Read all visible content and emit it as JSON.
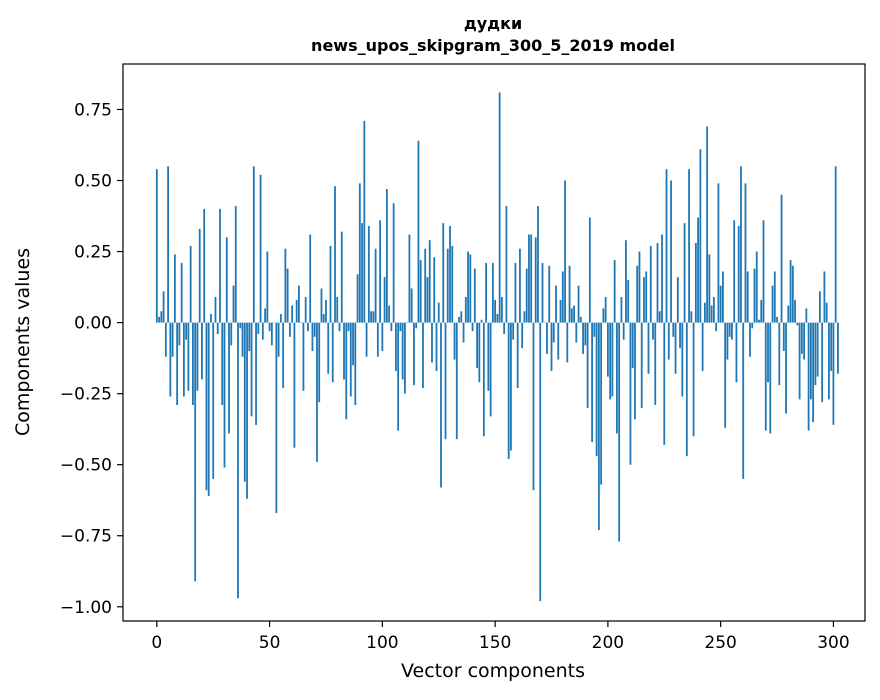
{
  "chart_data": {
    "type": "bar",
    "title": "дудки",
    "subtitle": "news_upos_skipgram_300_5_2019 model",
    "xlabel": "Vector components",
    "ylabel": "Components values",
    "xlim": [
      -15,
      314
    ],
    "ylim": [
      -1.05,
      0.91
    ],
    "xticks": [
      0,
      50,
      100,
      150,
      200,
      250,
      300
    ],
    "yticks": [
      0.75,
      0.5,
      0.25,
      0.0,
      -0.25,
      -0.5,
      -0.75,
      -1.0
    ],
    "xtick_labels": [
      "0",
      "50",
      "100",
      "150",
      "200",
      "250",
      "300"
    ],
    "ytick_labels": [
      "0.75",
      "0.50",
      "0.25",
      "0.00",
      "−0.25",
      "−0.50",
      "−0.75",
      "−1.00"
    ],
    "bar_color": "#1f77b4",
    "grid": false,
    "values": [
      0.54,
      0.02,
      0.04,
      0.11,
      -0.12,
      0.55,
      -0.26,
      -0.12,
      0.24,
      -0.29,
      -0.08,
      0.21,
      -0.26,
      -0.06,
      -0.24,
      0.27,
      -0.29,
      -0.91,
      -0.24,
      0.33,
      -0.2,
      0.4,
      -0.59,
      -0.61,
      0.03,
      -0.55,
      0.09,
      -0.04,
      0.4,
      -0.29,
      -0.51,
      0.3,
      -0.39,
      -0.08,
      0.13,
      0.41,
      -0.97,
      -0.02,
      -0.12,
      -0.56,
      -0.62,
      -0.1,
      -0.33,
      0.55,
      -0.36,
      -0.04,
      0.52,
      -0.06,
      0.05,
      0.25,
      -0.03,
      -0.08,
      0.0,
      -0.67,
      -0.12,
      0.03,
      -0.23,
      0.26,
      0.19,
      -0.05,
      0.06,
      -0.44,
      0.08,
      0.13,
      0.0,
      -0.24,
      0.09,
      -0.03,
      0.31,
      -0.1,
      -0.05,
      -0.49,
      -0.28,
      0.12,
      0.03,
      0.08,
      -0.18,
      0.27,
      -0.21,
      0.48,
      0.09,
      -0.03,
      0.32,
      -0.2,
      -0.34,
      -0.03,
      -0.26,
      -0.15,
      -0.29,
      0.17,
      0.49,
      0.35,
      0.71,
      -0.12,
      0.34,
      0.04,
      0.04,
      0.26,
      -0.12,
      0.36,
      -0.1,
      0.16,
      0.47,
      0.06,
      -0.03,
      0.42,
      -0.17,
      -0.38,
      -0.03,
      -0.2,
      -0.25,
      0.0,
      0.31,
      0.12,
      -0.22,
      -0.02,
      0.64,
      0.22,
      -0.23,
      0.26,
      0.16,
      0.29,
      -0.14,
      0.23,
      -0.17,
      0.07,
      -0.58,
      0.35,
      -0.41,
      0.26,
      0.34,
      0.27,
      -0.13,
      -0.41,
      0.02,
      0.04,
      -0.07,
      0.09,
      0.25,
      0.24,
      -0.03,
      0.19,
      -0.16,
      -0.21,
      0.01,
      -0.4,
      0.21,
      -0.24,
      -0.33,
      0.21,
      0.08,
      0.03,
      0.81,
      0.09,
      -0.04,
      0.41,
      -0.48,
      -0.45,
      -0.06,
      0.21,
      -0.23,
      0.26,
      -0.09,
      0.04,
      0.19,
      0.31,
      0.31,
      -0.59,
      0.3,
      0.41,
      -0.98,
      0.21,
      0.0,
      -0.11,
      0.2,
      -0.17,
      -0.07,
      0.13,
      -0.13,
      0.08,
      0.18,
      0.5,
      -0.14,
      0.2,
      0.05,
      0.06,
      -0.07,
      0.13,
      0.02,
      -0.11,
      -0.08,
      -0.3,
      0.37,
      -0.42,
      -0.05,
      -0.47,
      -0.73,
      -0.57,
      0.05,
      0.09,
      -0.19,
      -0.27,
      -0.26,
      0.22,
      -0.39,
      -0.77,
      0.09,
      -0.06,
      0.29,
      0.15,
      -0.5,
      -0.16,
      -0.34,
      0.2,
      0.25,
      -0.3,
      0.16,
      0.18,
      -0.18,
      0.27,
      -0.06,
      -0.29,
      0.28,
      0.04,
      0.31,
      -0.43,
      0.54,
      -0.13,
      0.5,
      -0.05,
      -0.18,
      0.16,
      -0.09,
      -0.26,
      0.35,
      -0.47,
      0.54,
      0.04,
      -0.4,
      0.28,
      0.37,
      0.61,
      -0.17,
      0.07,
      0.69,
      0.24,
      0.06,
      0.09,
      -0.03,
      0.49,
      0.13,
      0.18,
      -0.37,
      -0.13,
      -0.05,
      -0.06,
      0.36,
      -0.21,
      0.34,
      0.55,
      -0.55,
      0.49,
      0.18,
      -0.12,
      -0.02,
      0.19,
      0.25,
      0.01,
      0.08,
      0.36,
      -0.38,
      -0.21,
      -0.39,
      0.13,
      0.18,
      0.02,
      -0.22,
      0.45,
      -0.1,
      -0.32,
      0.06,
      0.22,
      0.2,
      0.08,
      -0.01,
      -0.27,
      -0.11,
      -0.13,
      0.05,
      -0.38,
      -0.27,
      -0.35,
      -0.22,
      -0.19,
      0.11,
      -0.28,
      0.18,
      0.07,
      -0.27,
      -0.17,
      -0.36,
      0.55,
      -0.18
    ]
  }
}
